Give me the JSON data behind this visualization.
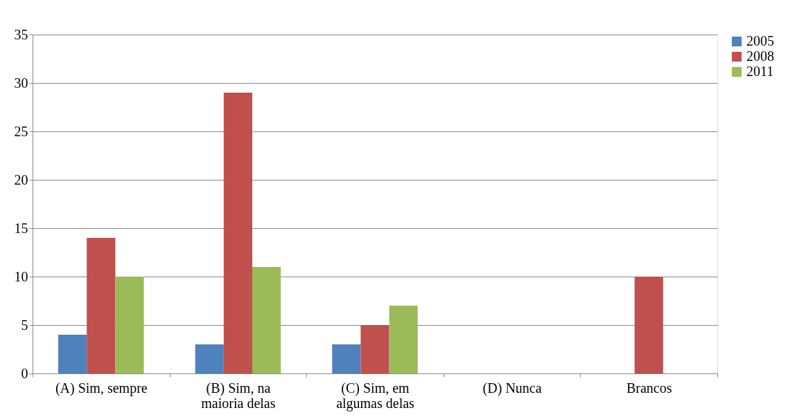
{
  "chart_data": {
    "type": "bar",
    "categories": [
      "(A) Sim, sempre",
      "(B) Sim, na maioria delas",
      "(C) Sim, em algumas delas",
      "(D) Nunca",
      "Brancos"
    ],
    "series": [
      {
        "name": "2005",
        "color": "#4f81bd",
        "values": [
          4,
          3,
          3,
          0,
          0
        ]
      },
      {
        "name": "2008",
        "color": "#c0504d",
        "values": [
          14,
          29,
          5,
          0,
          10
        ]
      },
      {
        "name": "2011",
        "color": "#9bbb59",
        "values": [
          10,
          11,
          7,
          0,
          0
        ]
      }
    ],
    "ylim": [
      0,
      35
    ],
    "yticks": [
      0,
      5,
      10,
      15,
      20,
      25,
      30,
      35
    ],
    "grid": "y",
    "legend": "right"
  }
}
